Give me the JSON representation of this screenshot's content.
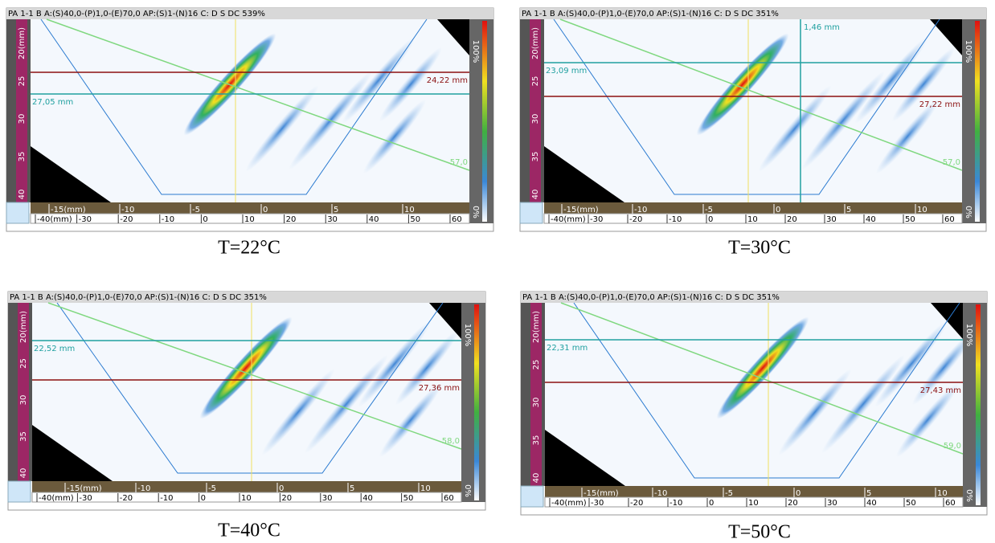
{
  "panels": [
    {
      "header": "PA 1-1 B A:(S)40,0-(P)1,0-(E)70,0 AP:(S)1-(N)16 C: D S  DC 539%",
      "red_label": "24,22 mm",
      "cyan_label": "27,05 mm",
      "angle_label": "57,0",
      "caption": "T=22°C"
    },
    {
      "header": "PA 1-1 B A:(S)40,0-(P)1,0-(E)70,0 AP:(S)1-(N)16 C: D S  DC 351%",
      "red_label": "27,22 mm",
      "cyan_label": "23,09 mm",
      "angle_label": "57,0",
      "marker_label": "1,46 mm",
      "caption": "T=30°C"
    },
    {
      "header": "PA 1-1 B A:(S)40,0-(P)1,0-(E)70,0 AP:(S)1-(N)16 C: D S  DC 351%",
      "red_label": "27,36 mm",
      "cyan_label": "22,52 mm",
      "angle_label": "58,0",
      "caption": "T=40°C"
    },
    {
      "header": "PA 1-1 B A:(S)40,0-(P)1,0-(E)70,0 AP:(S)1-(N)16 C: D S  DC 351%",
      "red_label": "27,43 mm",
      "cyan_label": "22,31 mm",
      "angle_label": "59,0",
      "caption": "T=50°C"
    }
  ],
  "scales": {
    "left": [
      "20(mm)",
      "25",
      "30",
      "35",
      "40"
    ],
    "bottom_upper": [
      "-15(mm)",
      "-10",
      "-5",
      "0",
      "5",
      "10"
    ],
    "bottom_lower": [
      "-40(mm)",
      "-30",
      "-20",
      "-10",
      "0",
      "10",
      "20",
      "30",
      "40",
      "50",
      "60"
    ],
    "color_top": "100%",
    "color_bottom": "0%"
  }
}
